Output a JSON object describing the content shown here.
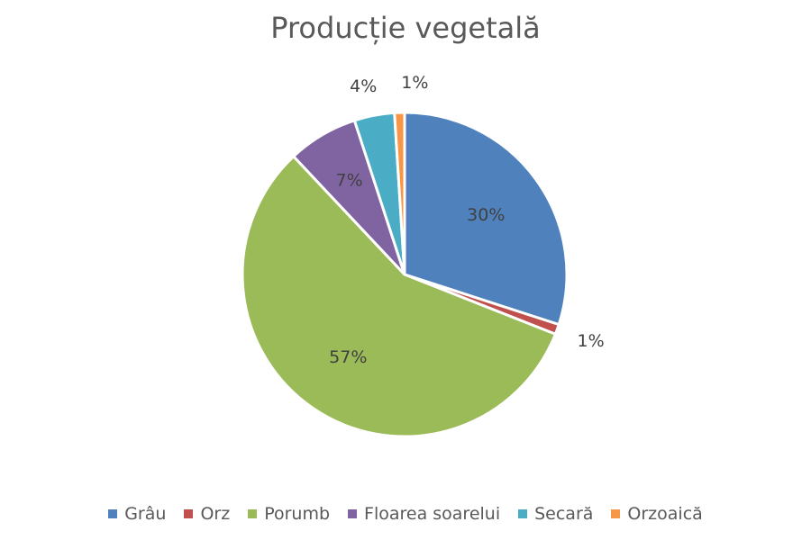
{
  "chart_data": {
    "type": "pie",
    "title": "Producție vegetală",
    "categories": [
      "Grâu",
      "Orz",
      "Porumb",
      "Floarea soarelui",
      "Secară",
      "Orzoaică"
    ],
    "values": [
      30,
      1,
      57,
      7,
      4,
      1
    ],
    "data_labels": [
      "30%",
      "1%",
      "57%",
      "7%",
      "4%",
      "1%"
    ],
    "colors": [
      "#4F81BD",
      "#C0504D",
      "#9BBB59",
      "#8064A2",
      "#4BACC6",
      "#F79646"
    ],
    "start_angle_deg": 0,
    "direction": "clockwise",
    "legend_position": "bottom"
  }
}
